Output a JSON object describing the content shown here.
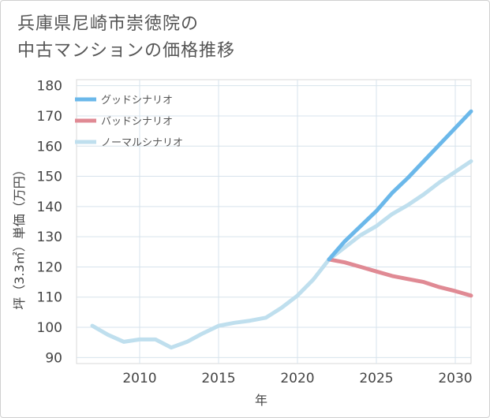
{
  "title": {
    "line1": "兵庫県尼崎市崇徳院の",
    "line2": "中古マンションの価格推移"
  },
  "chart_data": {
    "type": "line",
    "title": "兵庫県尼崎市崇徳院の中古マンションの価格推移",
    "xlabel": "年",
    "ylabel": "坪（3.3㎡）単価（万円）",
    "xlim": [
      2006,
      2031
    ],
    "ylim": [
      88,
      182
    ],
    "xticks": [
      2010,
      2015,
      2020,
      2025,
      2030
    ],
    "yticks": [
      90,
      100,
      110,
      120,
      130,
      140,
      150,
      160,
      170,
      180
    ],
    "grid": true,
    "legend_position": "top-left",
    "series": [
      {
        "name": "グッドシナリオ",
        "color": "#6bb8ea",
        "x": [
          2022,
          2023,
          2024,
          2025,
          2026,
          2027,
          2028,
          2029,
          2030,
          2031
        ],
        "values": [
          122.5,
          128.5,
          133.5,
          138.5,
          144.5,
          149.5,
          155,
          160.5,
          166,
          171.5
        ]
      },
      {
        "name": "バッドシナリオ",
        "color": "#e08a94",
        "x": [
          2022,
          2023,
          2024,
          2025,
          2026,
          2027,
          2028,
          2029,
          2030,
          2031
        ],
        "values": [
          122.5,
          121.5,
          120,
          118.5,
          117,
          116,
          115,
          113.3,
          112,
          110.5
        ]
      },
      {
        "name": "ノーマルシナリオ",
        "color": "#bfdfee",
        "x": [
          2007,
          2008,
          2009,
          2010,
          2011,
          2012,
          2013,
          2014,
          2015,
          2016,
          2017,
          2018,
          2019,
          2020,
          2021,
          2022,
          2023,
          2024,
          2025,
          2026,
          2027,
          2028,
          2029,
          2030,
          2031
        ],
        "values": [
          100.5,
          97.5,
          95.2,
          96,
          96,
          93.3,
          95.2,
          98,
          100.5,
          101.5,
          102.2,
          103.2,
          106.5,
          110.5,
          115.8,
          122.5,
          126.5,
          130.5,
          133.5,
          137.5,
          140.5,
          144,
          148,
          151.5,
          155
        ]
      }
    ]
  }
}
